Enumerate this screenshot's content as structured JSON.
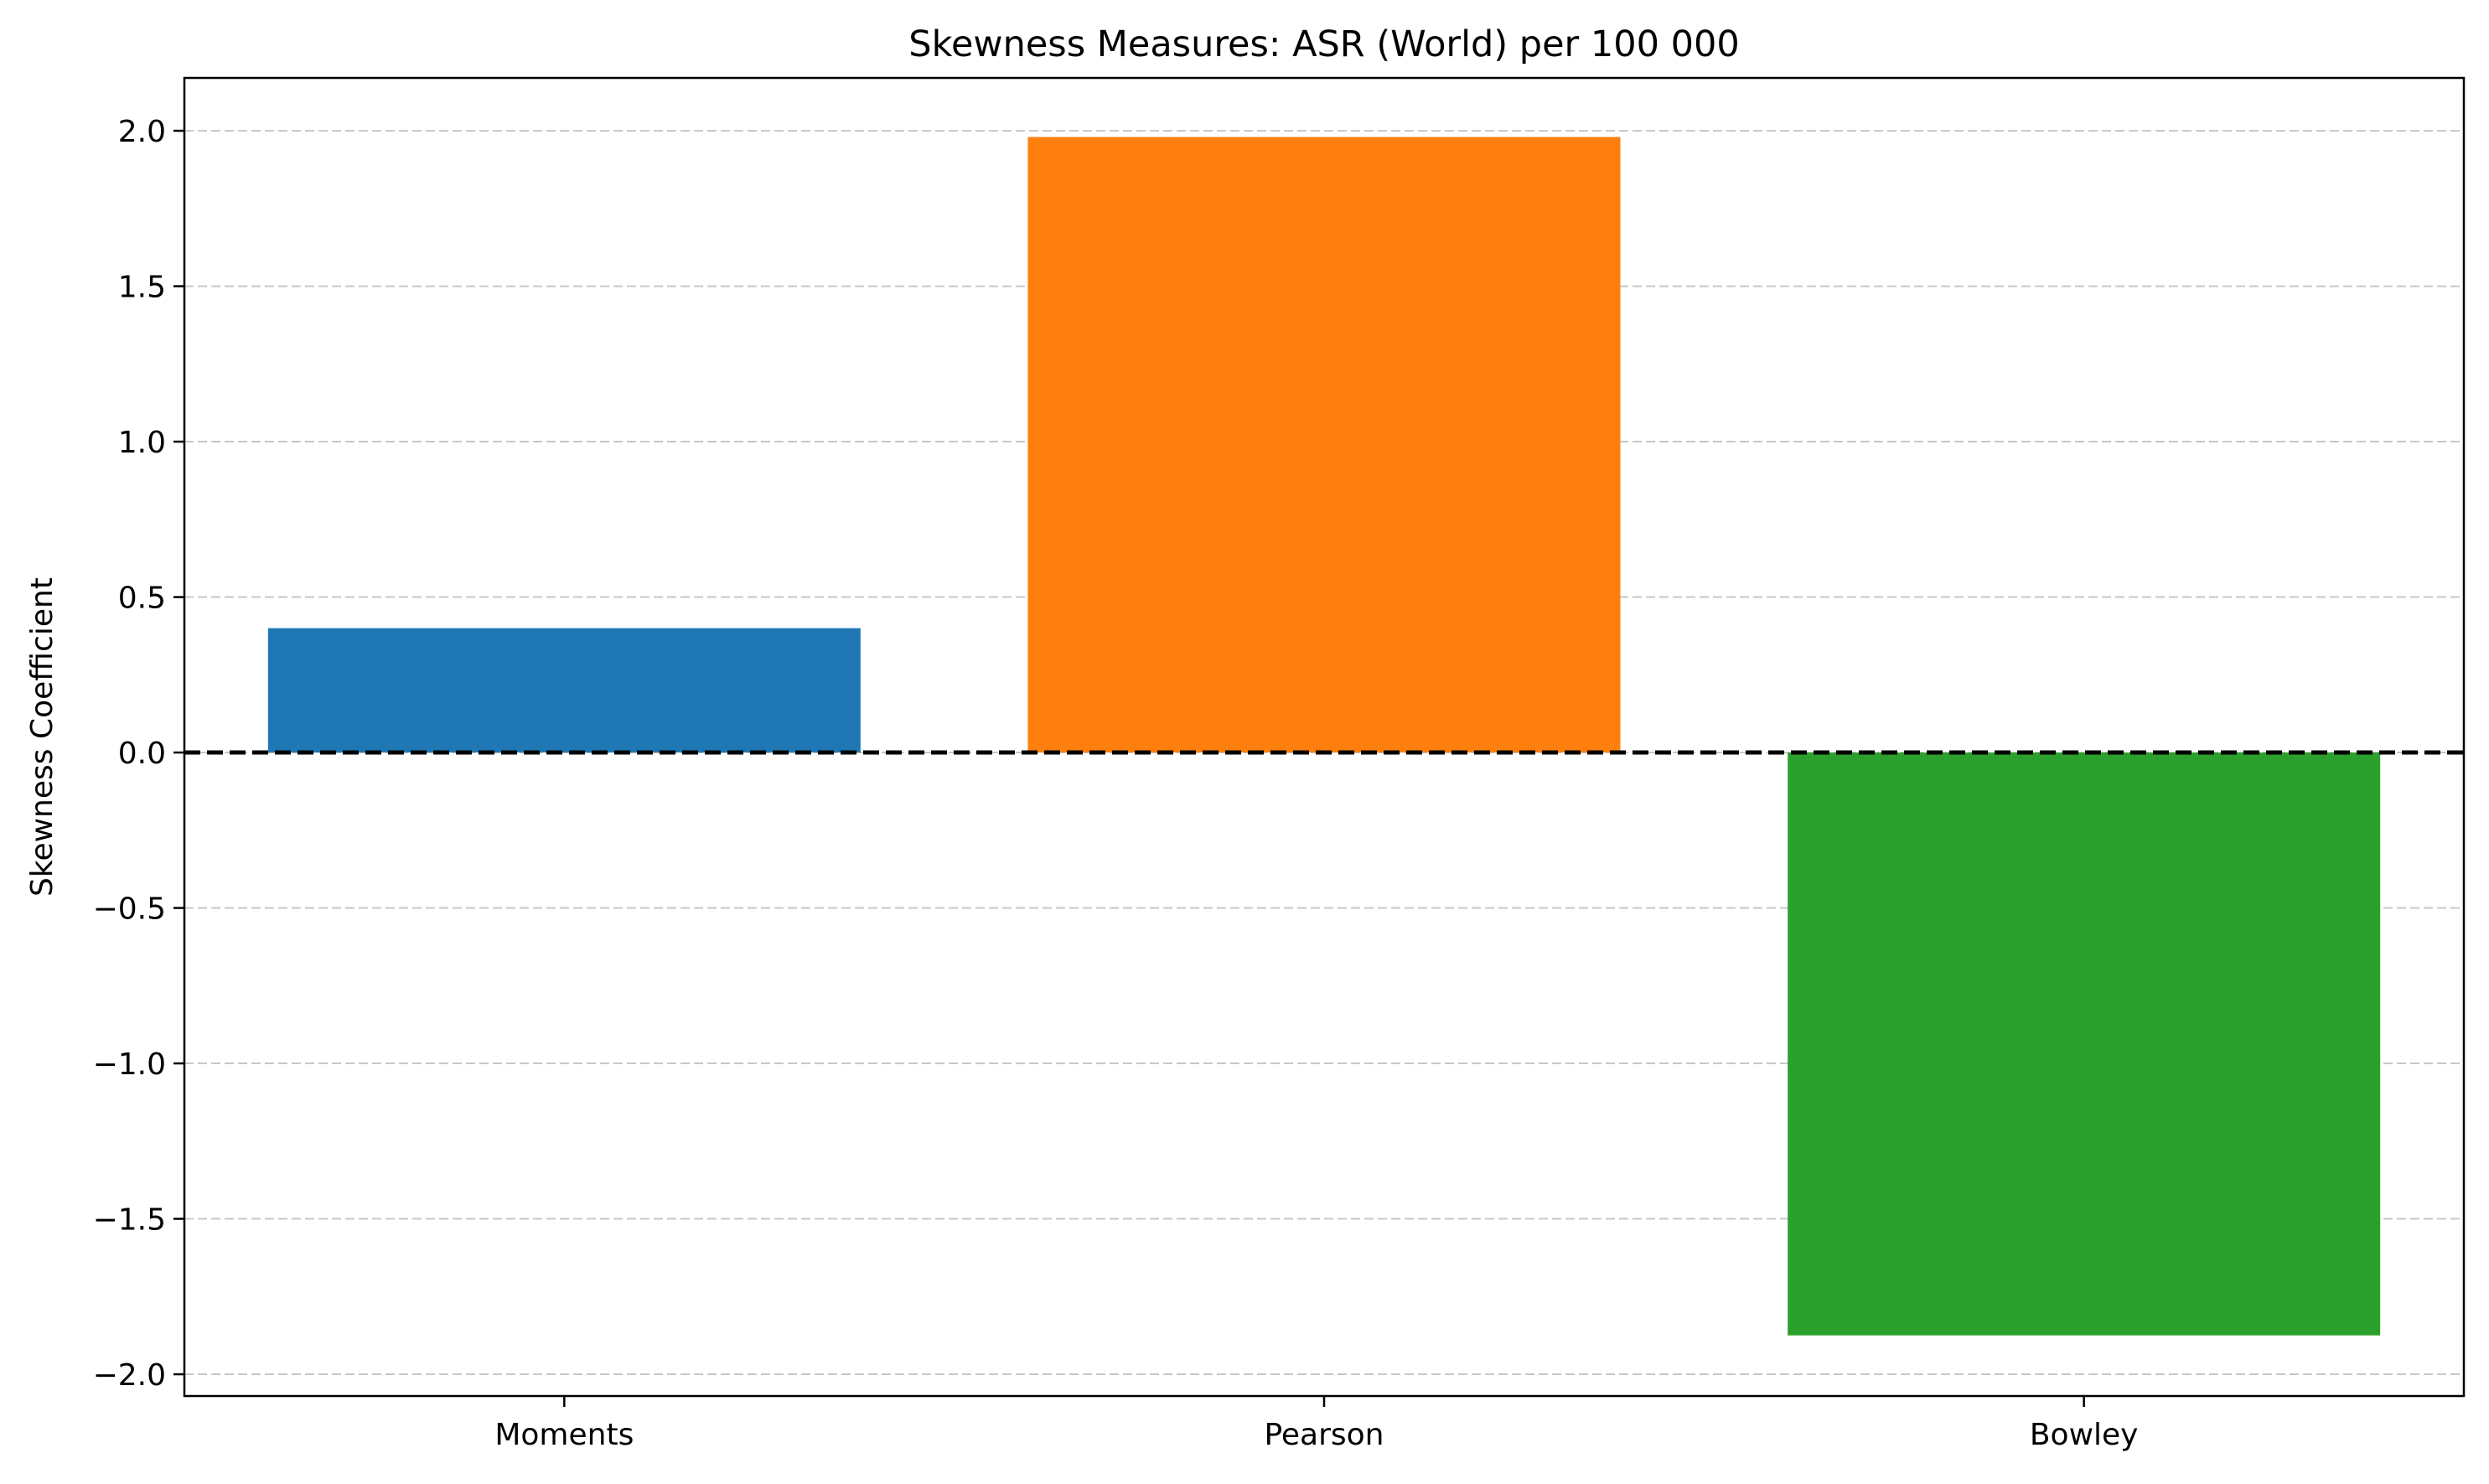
{
  "chart_data": {
    "type": "bar",
    "title": "Skewness Measures: ASR (World) per 100 000",
    "xlabel": "",
    "ylabel": "Skewness Coefficient",
    "categories": [
      "Moments",
      "Pearson",
      "Bowley"
    ],
    "values": [
      0.4,
      1.98,
      -1.875
    ],
    "colors": [
      "#1f77b4",
      "#ff7f0e",
      "#2ca02c"
    ],
    "ylim": [
      -2.07,
      2.17
    ],
    "yticks": [
      -2.0,
      -1.5,
      -1.0,
      -0.5,
      0.0,
      0.5,
      1.0,
      1.5,
      2.0
    ],
    "ytick_labels": [
      "−2.0",
      "−1.5",
      "−1.0",
      "−0.5",
      "0.0",
      "0.5",
      "1.0",
      "1.5",
      "2.0"
    ],
    "grid": {
      "axis": "y",
      "style": "dashed",
      "color": "#b0b0b0"
    },
    "zero_line": {
      "style": "dashed",
      "color": "#000000"
    }
  }
}
